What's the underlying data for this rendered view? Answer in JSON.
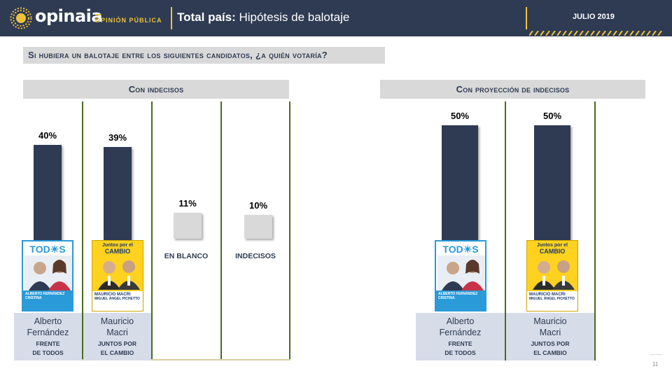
{
  "header": {
    "logo_text": "opinaia",
    "logo_subtitle": "OPINIÓN PÚBLICA",
    "title_bold": "Total país:",
    "title_rest": " Hipótesis de balotaje",
    "date": "JULIO 2019"
  },
  "question": "Si hubiera un balotaje entre los siguientes candidatos, ¿a quién votaría?",
  "candidates": {
    "fernandez": {
      "name_line1": "Alberto",
      "name_line2": "Fernández",
      "party_line1": "FRENTE",
      "party_line2": "DE TODOS",
      "poster_brand": "TOD☀S",
      "poster_names": [
        "ALBERTO FERNÁNDEZ",
        "CRISTINA"
      ]
    },
    "macri": {
      "name_line1": "Mauricio",
      "name_line2": "Macri",
      "party_line1": "JUNTOS POR",
      "party_line2": "EL CAMBIO",
      "poster_brand_line1": "Juntos por el",
      "poster_brand_line2": "CAMBIO",
      "poster_names": [
        "MAURICIO MACRI",
        "MIGUEL ÁNGEL PICHETTO"
      ]
    }
  },
  "colors": {
    "navy": "#2e3b52",
    "gold": "#f0c23a",
    "grey": "#d9d9d9",
    "green_line": "#4a6b1f",
    "todos_blue": "#2a9ad8",
    "juntos_yellow": "#ffd21f"
  },
  "chart_data": [
    {
      "type": "bar",
      "title": "Con indecisos",
      "categories": [
        "Alberto Fernández",
        "Mauricio Macri",
        "EN BLANCO",
        "INDECISOS"
      ],
      "values": [
        40,
        39,
        11,
        10
      ],
      "labels": [
        "40%",
        "39%",
        "11%",
        "10%"
      ],
      "ylim": [
        0,
        50
      ]
    },
    {
      "type": "bar",
      "title": "Con proyección de indecisos",
      "categories": [
        "Alberto Fernández",
        "Mauricio Macri"
      ],
      "values": [
        50,
        50
      ],
      "labels": [
        "50%",
        "50%"
      ],
      "ylim": [
        0,
        50
      ]
    }
  ],
  "page_number": "11"
}
